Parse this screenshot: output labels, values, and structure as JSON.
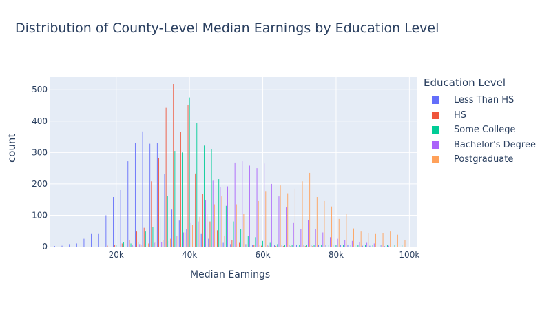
{
  "chart_data": {
    "type": "bar",
    "title": "Distribution of County-Level Median Earnings by Education Level",
    "xlabel": "Median Earnings",
    "ylabel": "count",
    "xlim": [
      2000,
      102000
    ],
    "ylim": [
      0,
      540
    ],
    "x_ticks": [
      20000,
      40000,
      60000,
      80000,
      100000
    ],
    "x_tick_labels": [
      "20k",
      "40k",
      "60k",
      "80k",
      "100k"
    ],
    "y_ticks": [
      0,
      100,
      200,
      300,
      400,
      500
    ],
    "y_tick_labels": [
      "0",
      "100",
      "200",
      "300",
      "400",
      "500"
    ],
    "legend_title": "Education Level",
    "legend_position": "right",
    "bin_width": 2000,
    "series": [
      {
        "name": "Less Than HS",
        "color": "#636efa",
        "x": [
          4000,
          6000,
          8000,
          10000,
          12000,
          14000,
          16000,
          18000,
          20000,
          22000,
          24000,
          26000,
          28000,
          30000,
          32000,
          34000,
          36000,
          38000,
          40000,
          42000,
          44000,
          46000,
          48000,
          50000,
          52000,
          54000,
          56000,
          58000,
          60000,
          62000,
          64000,
          66000,
          68000,
          70000,
          72000,
          74000,
          76000,
          78000,
          80000,
          82000,
          84000,
          86000,
          88000,
          90000,
          92000,
          94000
        ],
        "values": [
          2,
          3,
          8,
          10,
          25,
          40,
          40,
          100,
          158,
          180,
          272,
          330,
          367,
          328,
          330,
          232,
          118,
          83,
          55,
          40,
          40,
          25,
          18,
          12,
          8,
          8,
          8,
          5,
          5,
          5,
          5,
          5,
          5,
          5,
          5,
          5,
          5,
          5,
          5,
          5,
          5,
          4,
          3,
          3,
          3,
          2
        ]
      },
      {
        "name": "HS",
        "color": "#ef553b",
        "x": [
          18000,
          20000,
          22000,
          24000,
          26000,
          28000,
          30000,
          32000,
          34000,
          36000,
          38000,
          40000,
          42000,
          44000,
          46000,
          48000,
          50000,
          52000,
          54000,
          56000,
          58000,
          60000,
          62000,
          64000,
          66000,
          68000,
          70000,
          72000,
          74000
        ],
        "values": [
          3,
          5,
          10,
          20,
          48,
          60,
          208,
          282,
          442,
          518,
          365,
          450,
          233,
          168,
          80,
          52,
          35,
          20,
          12,
          8,
          5,
          3,
          3,
          2,
          2,
          2,
          2,
          2,
          2
        ]
      },
      {
        "name": "Some College",
        "color": "#00cc96",
        "x": [
          20000,
          22000,
          24000,
          26000,
          28000,
          30000,
          32000,
          34000,
          36000,
          38000,
          40000,
          42000,
          44000,
          46000,
          48000,
          50000,
          52000,
          54000,
          56000,
          58000,
          60000,
          62000,
          64000,
          66000,
          68000,
          70000,
          72000,
          74000,
          76000,
          78000,
          80000,
          82000,
          84000,
          86000,
          88000,
          90000,
          92000,
          94000,
          96000,
          98000
        ],
        "values": [
          5,
          15,
          10,
          15,
          48,
          62,
          97,
          162,
          305,
          300,
          475,
          395,
          322,
          310,
          215,
          130,
          80,
          55,
          35,
          30,
          18,
          12,
          8,
          5,
          5,
          5,
          5,
          5,
          5,
          5,
          5,
          5,
          5,
          5,
          5,
          5,
          5,
          5,
          5,
          5
        ]
      },
      {
        "name": "Bachelor's Degree",
        "color": "#ab63fa",
        "x": [
          22000,
          24000,
          26000,
          28000,
          30000,
          32000,
          34000,
          36000,
          38000,
          40000,
          42000,
          44000,
          46000,
          48000,
          50000,
          52000,
          54000,
          56000,
          58000,
          60000,
          62000,
          64000,
          66000,
          68000,
          70000,
          72000,
          74000,
          76000,
          78000,
          80000,
          82000,
          84000,
          86000,
          88000,
          90000,
          92000,
          94000
        ],
        "values": [
          3,
          5,
          8,
          10,
          12,
          15,
          18,
          35,
          45,
          75,
          80,
          148,
          210,
          190,
          192,
          268,
          272,
          258,
          250,
          265,
          200,
          160,
          125,
          75,
          55,
          85,
          55,
          45,
          30,
          25,
          20,
          18,
          15,
          12,
          10,
          5,
          3
        ]
      },
      {
        "name": "Postgraduate",
        "color": "#ffa15a",
        "x": [
          24000,
          26000,
          28000,
          30000,
          32000,
          34000,
          36000,
          38000,
          40000,
          42000,
          44000,
          46000,
          48000,
          50000,
          52000,
          54000,
          56000,
          58000,
          60000,
          62000,
          64000,
          66000,
          68000,
          70000,
          72000,
          74000,
          76000,
          78000,
          80000,
          82000,
          84000,
          86000,
          88000,
          90000,
          92000,
          94000,
          96000,
          98000
        ],
        "values": [
          2,
          5,
          10,
          15,
          20,
          25,
          35,
          45,
          70,
          95,
          105,
          135,
          160,
          180,
          135,
          105,
          110,
          145,
          175,
          178,
          195,
          170,
          185,
          208,
          235,
          158,
          145,
          128,
          88,
          105,
          58,
          48,
          43,
          40,
          43,
          48,
          38,
          20
        ]
      }
    ]
  }
}
